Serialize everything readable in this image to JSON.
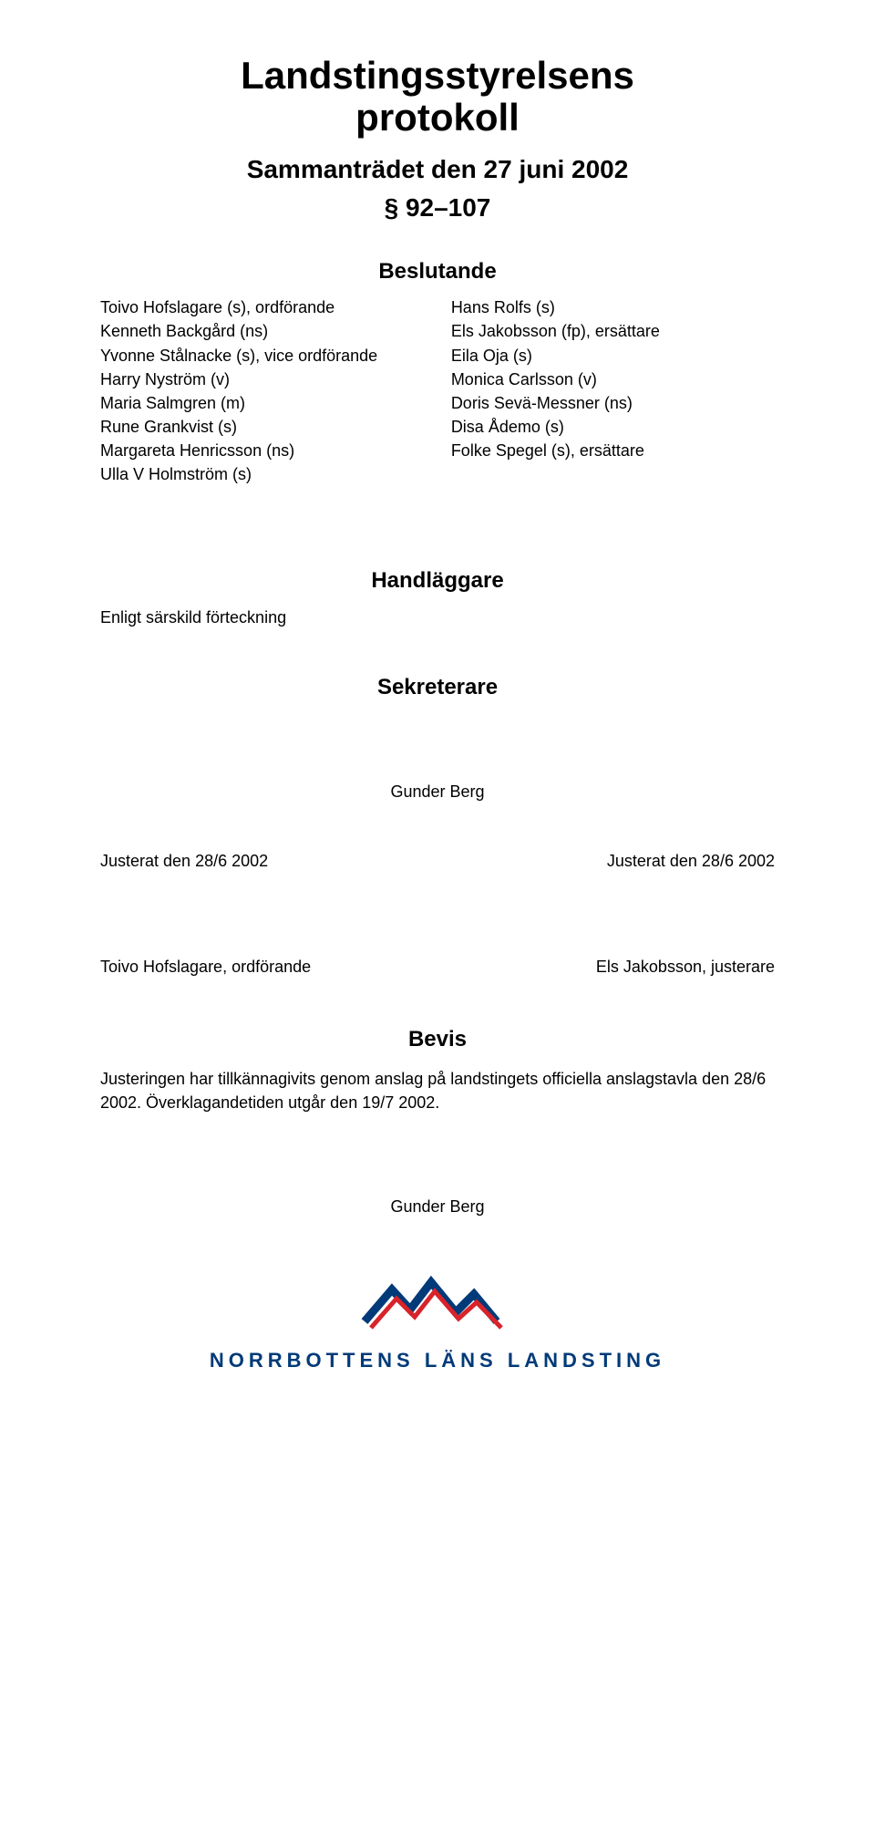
{
  "title_line1": "Landstingsstyrelsens",
  "title_line2": "protokoll",
  "subtitle": "Sammanträdet den 27 juni 2002",
  "section_range": "§ 92–107",
  "beslutande_heading": "Beslutande",
  "members_left": [
    "Toivo Hofslagare (s), ordförande",
    "Kenneth Backgård (ns)",
    "Yvonne Stålnacke (s), vice ordförande",
    "Harry Nyström (v)",
    "Maria Salmgren (m)",
    "Rune Grankvist (s)",
    "Margareta Henricsson (ns)",
    "Ulla V Holmström (s)"
  ],
  "members_right": [
    "Hans Rolfs (s)",
    "Els Jakobsson (fp), ersättare",
    "Eila Oja (s)",
    "Monica Carlsson (v)",
    "Doris Sevä-Messner (ns)",
    "Disa Ådemo (s)",
    "Folke Spegel (s), ersättare"
  ],
  "handlaggare_heading": "Handläggare",
  "handlaggare_text": "Enligt särskild förteckning",
  "sekreterare_heading": "Sekreterare",
  "sekreterare_name": "Gunder Berg",
  "justerat_left": "Justerat den 28/6 2002",
  "justerat_right": "Justerat den 28/6 2002",
  "signer_left": "Toivo Hofslagare, ordförande",
  "signer_right": "Els Jakobsson, justerare",
  "bevis_heading": "Bevis",
  "bevis_text": "Justeringen har tillkännagivits genom anslag på landstingets officiella anslagstavla den 28/6 2002. Överklagandetiden utgår den 19/7 2002.",
  "footer_name": "Gunder Berg",
  "logo_text": "NORRBOTTENS LÄNS LANDSTING",
  "colors": {
    "logo_blue": "#003a78",
    "logo_red": "#d8232a",
    "text": "#000000",
    "background": "#ffffff"
  }
}
